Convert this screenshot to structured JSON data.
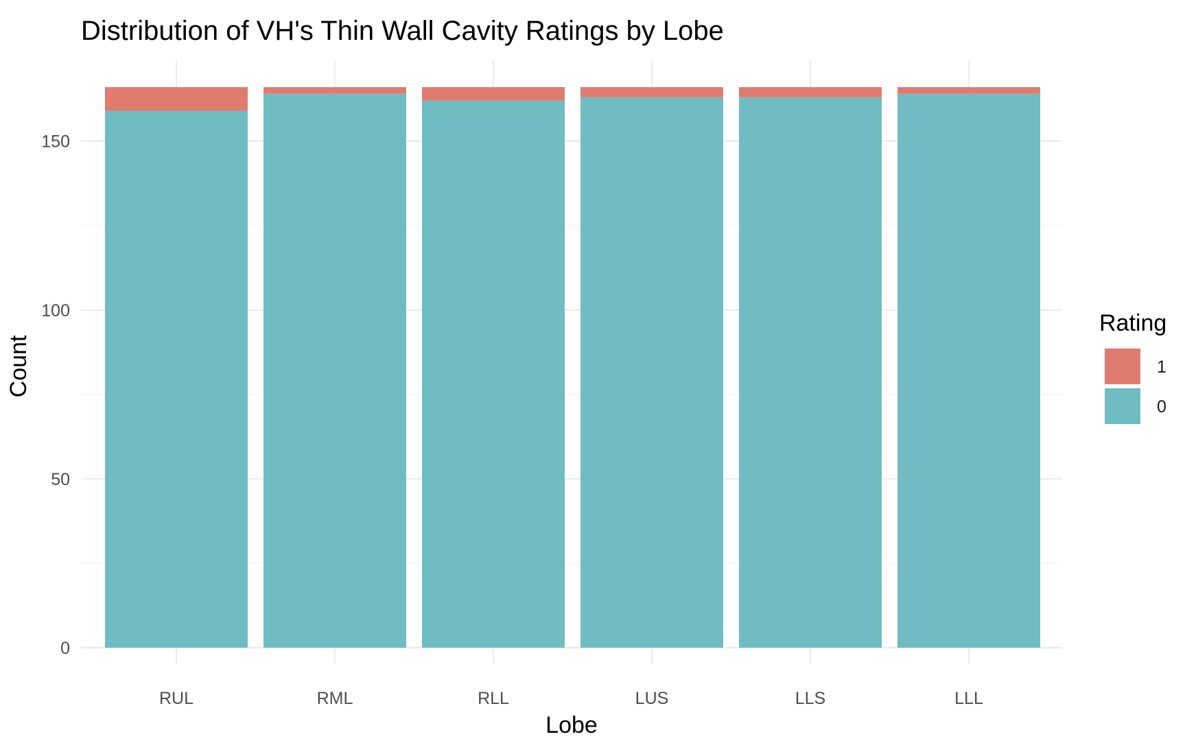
{
  "chart_data": {
    "type": "bar",
    "stacked": true,
    "title": "Distribution of VH's Thin Wall Cavity Ratings by Lobe",
    "xlabel": "Lobe",
    "ylabel": "Count",
    "categories": [
      "RUL",
      "RML",
      "RLL",
      "LUS",
      "LLS",
      "LLL"
    ],
    "series": [
      {
        "name": "0",
        "color": "#6FBCC3",
        "values": [
          159,
          164,
          162,
          163,
          163,
          164
        ]
      },
      {
        "name": "1",
        "color": "#E07B70",
        "values": [
          7,
          2,
          4,
          3,
          3,
          2
        ]
      }
    ],
    "ylim": [
      0,
      166
    ],
    "yticks": [
      0,
      50,
      100,
      150
    ],
    "grid": true,
    "legend": {
      "title": "Rating",
      "position": "right",
      "order": [
        "1",
        "0"
      ]
    }
  }
}
